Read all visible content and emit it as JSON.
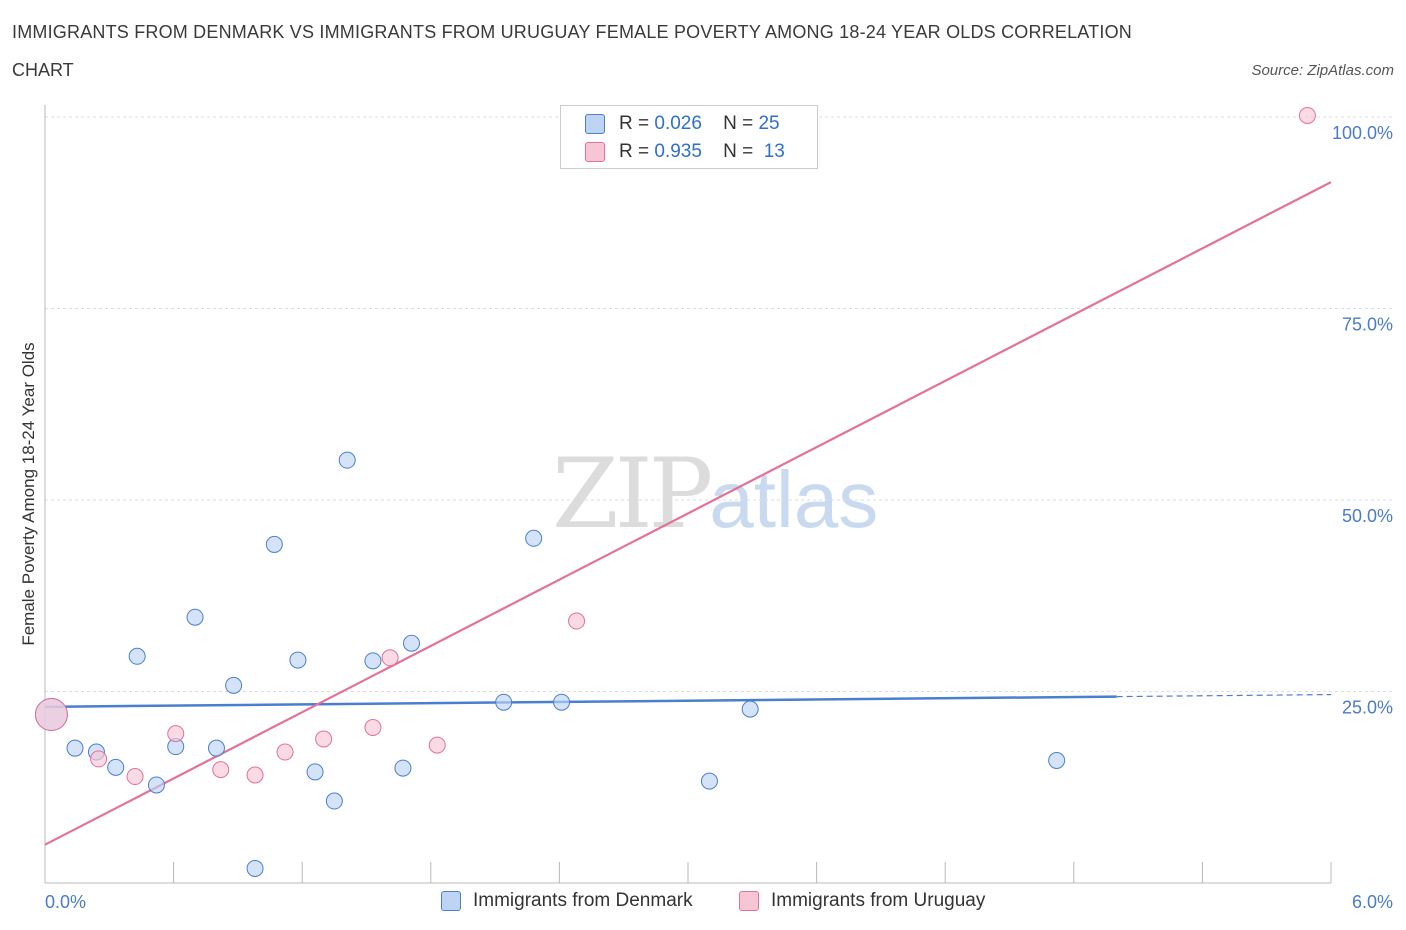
{
  "title_line1": "IMMIGRANTS FROM DENMARK VS IMMIGRANTS FROM URUGUAY FEMALE POVERTY AMONG 18-24 YEAR OLDS CORRELATION",
  "title_line2": "CHART",
  "source": "Source: ZipAtlas.com",
  "watermark": {
    "zip": "ZIP",
    "atlas": "atlas"
  },
  "colors": {
    "denmark": "#4a7fd0",
    "uruguay": "#e3719b",
    "denmark_fill": "#bdd4f5",
    "uruguay_fill": "#f7c6d6"
  },
  "legend": {
    "rows": [
      {
        "r_label": "R =",
        "r_value": "0.026",
        "n_label": "N =",
        "n_value": "25"
      },
      {
        "r_label": "R =",
        "r_value": "0.935",
        "n_label": "N =",
        "n_value": "13"
      }
    ]
  },
  "bottom_legend": {
    "denmark": "Immigrants from Denmark",
    "uruguay": "Immigrants from Uruguay"
  },
  "chart_data": {
    "type": "scatter",
    "title": "IMMIGRANTS FROM DENMARK VS IMMIGRANTS FROM URUGUAY FEMALE POVERTY AMONG 18-24 YEAR OLDS CORRELATION CHART",
    "xlabel": "",
    "ylabel": "Female Poverty Among 18-24 Year Olds",
    "xlim": [
      0,
      6
    ],
    "ylim": [
      0,
      100
    ],
    "x_tick_labels": [
      "0.0%",
      "6.0%"
    ],
    "y_ticks": [
      25,
      50,
      75,
      100
    ],
    "y_tick_labels": [
      "25.0%",
      "50.0%",
      "75.0%",
      "100.0%"
    ],
    "grid": true,
    "series": [
      {
        "name": "Immigrants from Denmark",
        "points": [
          {
            "x": 0.03,
            "y": 22.0,
            "size": "large"
          },
          {
            "x": 0.14,
            "y": 17.6
          },
          {
            "x": 0.24,
            "y": 17.1
          },
          {
            "x": 0.33,
            "y": 15.1
          },
          {
            "x": 0.43,
            "y": 29.6
          },
          {
            "x": 0.52,
            "y": 12.8
          },
          {
            "x": 0.61,
            "y": 17.8
          },
          {
            "x": 0.7,
            "y": 34.7
          },
          {
            "x": 0.8,
            "y": 17.6
          },
          {
            "x": 0.88,
            "y": 25.8
          },
          {
            "x": 0.98,
            "y": 1.9
          },
          {
            "x": 1.07,
            "y": 44.2
          },
          {
            "x": 1.18,
            "y": 29.1
          },
          {
            "x": 1.26,
            "y": 14.5
          },
          {
            "x": 1.35,
            "y": 10.7
          },
          {
            "x": 1.41,
            "y": 55.2
          },
          {
            "x": 1.53,
            "y": 29.0
          },
          {
            "x": 1.67,
            "y": 15.0
          },
          {
            "x": 1.71,
            "y": 31.3
          },
          {
            "x": 2.14,
            "y": 23.6
          },
          {
            "x": 2.28,
            "y": 45.0
          },
          {
            "x": 2.41,
            "y": 23.6
          },
          {
            "x": 3.1,
            "y": 13.3
          },
          {
            "x": 3.29,
            "y": 22.7
          },
          {
            "x": 4.72,
            "y": 16.0
          }
        ],
        "trend": {
          "x_start": 0,
          "y_start": 23.0,
          "x_solid_end": 5.0,
          "x_end": 6.0,
          "y_end": 24.6
        }
      },
      {
        "name": "Immigrants from Uruguay",
        "points": [
          {
            "x": 0.03,
            "y": 22.0,
            "size": "large"
          },
          {
            "x": 0.25,
            "y": 16.2
          },
          {
            "x": 0.42,
            "y": 13.9
          },
          {
            "x": 0.61,
            "y": 19.5
          },
          {
            "x": 0.82,
            "y": 14.8
          },
          {
            "x": 0.98,
            "y": 14.1
          },
          {
            "x": 1.12,
            "y": 17.1
          },
          {
            "x": 1.3,
            "y": 18.8
          },
          {
            "x": 1.53,
            "y": 20.3
          },
          {
            "x": 1.61,
            "y": 29.4
          },
          {
            "x": 1.83,
            "y": 18.0
          },
          {
            "x": 2.48,
            "y": 34.2
          },
          {
            "x": 5.89,
            "y": 100.2
          }
        ],
        "trend": {
          "x_start": 0,
          "y_start": 5.0,
          "x_end": 6.0,
          "y_end": 91.5
        }
      }
    ]
  }
}
